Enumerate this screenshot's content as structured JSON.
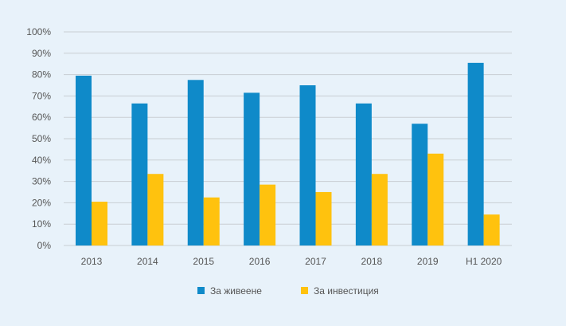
{
  "chart_data": {
    "type": "bar",
    "categories": [
      "2013",
      "2014",
      "2015",
      "2016",
      "2017",
      "2018",
      "2019",
      "H1 2020"
    ],
    "series": [
      {
        "name": "За живеене",
        "color": "#0f8ac9",
        "values": [
          79.5,
          66.5,
          77.5,
          71.5,
          75,
          66.5,
          57,
          85.5
        ]
      },
      {
        "name": "За инвестиция",
        "color": "#ffc20e",
        "values": [
          20.5,
          33.5,
          22.5,
          28.5,
          25,
          33.5,
          43,
          14.5
        ]
      }
    ],
    "ylim": [
      0,
      100
    ],
    "yticks": [
      "0%",
      "10%",
      "20%",
      "30%",
      "40%",
      "50%",
      "60%",
      "70%",
      "80%",
      "90%",
      "100%"
    ],
    "grid": true,
    "legend_position": "bottom-center",
    "title": "",
    "xlabel": "",
    "ylabel": ""
  }
}
